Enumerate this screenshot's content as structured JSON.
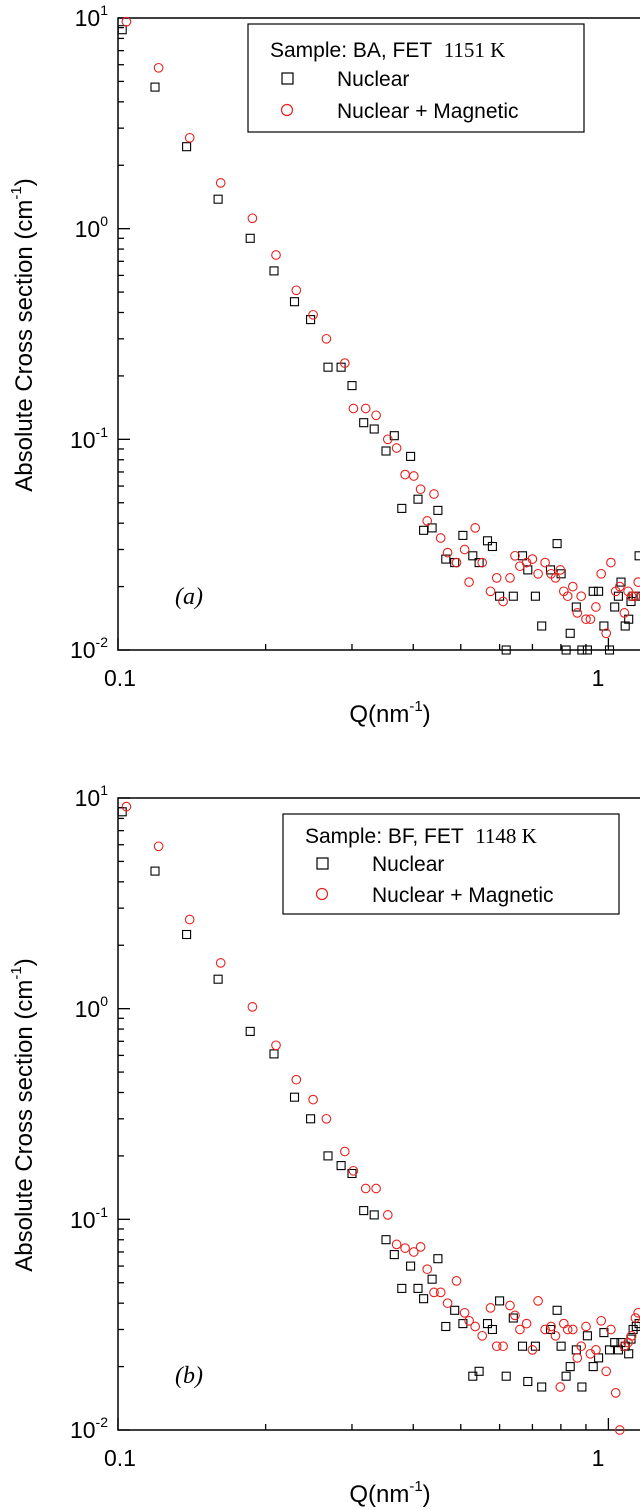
{
  "chart_data": [
    {
      "type": "scatter",
      "panel_label": "(a)",
      "xlabel": "Q(nm",
      "xlabel_sup": "-1",
      "xlabel_tail": ")",
      "ylabel": "Absolute Cross section (cm",
      "ylabel_sup": "-1",
      "ylabel_tail": ")",
      "xscale": "log",
      "yscale": "log",
      "xlim": [
        0.1,
        1.16
      ],
      "ylim": [
        0.01,
        10
      ],
      "x_ticks": [
        "0.1",
        "1"
      ],
      "y_ticks": [
        {
          "value": 10,
          "base": "10",
          "exp": "1"
        },
        {
          "value": 1,
          "base": "10",
          "exp": "0"
        },
        {
          "value": 0.1,
          "base": "10",
          "exp": "-1"
        },
        {
          "value": 0.01,
          "base": "10",
          "exp": "-2"
        }
      ],
      "legend": {
        "position": "top-right",
        "title": "Sample: BA, FET",
        "title_value": "1151 K",
        "entries": [
          "Nuclear",
          "Nuclear + Magnetic"
        ]
      },
      "colors": {
        "nuclear": "#000000",
        "magnetic": "#e8211d"
      },
      "series": [
        {
          "name": "Nuclear",
          "marker": "square",
          "points": [
            [
              0.102,
              8.8
            ],
            [
              0.119,
              4.7
            ],
            [
              0.138,
              2.45
            ],
            [
              0.16,
              1.38
            ],
            [
              0.186,
              0.9
            ],
            [
              0.208,
              0.63
            ],
            [
              0.229,
              0.45
            ],
            [
              0.247,
              0.37
            ],
            [
              0.268,
              0.22
            ],
            [
              0.285,
              0.22
            ],
            [
              0.3,
              0.18
            ],
            [
              0.317,
              0.12
            ],
            [
              0.333,
              0.112
            ],
            [
              0.352,
              0.088
            ],
            [
              0.366,
              0.104
            ],
            [
              0.379,
              0.047
            ],
            [
              0.395,
              0.083
            ],
            [
              0.409,
              0.052
            ],
            [
              0.42,
              0.037
            ],
            [
              0.437,
              0.038
            ],
            [
              0.449,
              0.046
            ],
            [
              0.466,
              0.027
            ],
            [
              0.486,
              0.026
            ],
            [
              0.505,
              0.035
            ],
            [
              0.529,
              0.028
            ],
            [
              0.545,
              0.026
            ],
            [
              0.567,
              0.033
            ],
            [
              0.58,
              0.031
            ],
            [
              0.6,
              0.018
            ],
            [
              0.619,
              0.01
            ],
            [
              0.64,
              0.018
            ],
            [
              0.668,
              0.028
            ],
            [
              0.685,
              0.024
            ],
            [
              0.71,
              0.018
            ],
            [
              0.731,
              0.013
            ],
            [
              0.762,
              0.024
            ],
            [
              0.786,
              0.032
            ],
            [
              0.801,
              0.023
            ],
            [
              0.82,
              0.01
            ],
            [
              0.836,
              0.012
            ],
            [
              0.86,
              0.016
            ],
            [
              0.883,
              0.01
            ],
            [
              0.906,
              0.01
            ],
            [
              0.931,
              0.019
            ],
            [
              0.955,
              0.019
            ],
            [
              0.979,
              0.013
            ],
            [
              1.005,
              0.01
            ],
            [
              1.03,
              0.016
            ],
            [
              1.048,
              0.018
            ],
            [
              1.061,
              0.021
            ],
            [
              1.082,
              0.013
            ],
            [
              1.1,
              0.014
            ],
            [
              1.112,
              0.017
            ],
            [
              1.123,
              0.018
            ],
            [
              1.14,
              0.018
            ],
            [
              1.155,
              0.028
            ]
          ]
        },
        {
          "name": "Nuclear + Magnetic",
          "marker": "circle",
          "points": [
            [
              0.104,
              9.6
            ],
            [
              0.121,
              5.8
            ],
            [
              0.14,
              2.7
            ],
            [
              0.162,
              1.65
            ],
            [
              0.188,
              1.12
            ],
            [
              0.21,
              0.75
            ],
            [
              0.231,
              0.51
            ],
            [
              0.25,
              0.39
            ],
            [
              0.266,
              0.3
            ],
            [
              0.29,
              0.23
            ],
            [
              0.302,
              0.14
            ],
            [
              0.32,
              0.14
            ],
            [
              0.336,
              0.13
            ],
            [
              0.355,
              0.1
            ],
            [
              0.37,
              0.091
            ],
            [
              0.385,
              0.068
            ],
            [
              0.401,
              0.067
            ],
            [
              0.414,
              0.058
            ],
            [
              0.427,
              0.041
            ],
            [
              0.441,
              0.055
            ],
            [
              0.455,
              0.034
            ],
            [
              0.47,
              0.029
            ],
            [
              0.49,
              0.026
            ],
            [
              0.509,
              0.03
            ],
            [
              0.52,
              0.021
            ],
            [
              0.535,
              0.038
            ],
            [
              0.553,
              0.026
            ],
            [
              0.575,
              0.019
            ],
            [
              0.592,
              0.022
            ],
            [
              0.61,
              0.017
            ],
            [
              0.63,
              0.022
            ],
            [
              0.645,
              0.028
            ],
            [
              0.66,
              0.025
            ],
            [
              0.681,
              0.026
            ],
            [
              0.7,
              0.027
            ],
            [
              0.719,
              0.023
            ],
            [
              0.743,
              0.026
            ],
            [
              0.764,
              0.023
            ],
            [
              0.78,
              0.022
            ],
            [
              0.798,
              0.024
            ],
            [
              0.811,
              0.019
            ],
            [
              0.826,
              0.018
            ],
            [
              0.846,
              0.02
            ],
            [
              0.864,
              0.015
            ],
            [
              0.88,
              0.018
            ],
            [
              0.9,
              0.014
            ],
            [
              0.919,
              0.014
            ],
            [
              0.943,
              0.016
            ],
            [
              0.967,
              0.023
            ],
            [
              0.99,
              0.012
            ],
            [
              1.012,
              0.026
            ],
            [
              1.035,
              0.019
            ],
            [
              1.055,
              0.02
            ],
            [
              1.078,
              0.015
            ],
            [
              1.097,
              0.019
            ],
            [
              1.115,
              0.018
            ],
            [
              1.135,
              0.018
            ],
            [
              1.15,
              0.021
            ]
          ]
        }
      ]
    },
    {
      "type": "scatter",
      "panel_label": "(b)",
      "xlabel": "Q(nm",
      "xlabel_sup": "-1",
      "xlabel_tail": ")",
      "ylabel": "Absolute Cross section (cm",
      "ylabel_sup": "-1",
      "ylabel_tail": ")",
      "xscale": "log",
      "yscale": "log",
      "xlim": [
        0.1,
        1.16
      ],
      "ylim": [
        0.01,
        10
      ],
      "x_ticks": [
        "0.1",
        "1"
      ],
      "y_ticks": [
        {
          "value": 10,
          "base": "10",
          "exp": "1"
        },
        {
          "value": 1,
          "base": "10",
          "exp": "0"
        },
        {
          "value": 0.1,
          "base": "10",
          "exp": "-1"
        },
        {
          "value": 0.01,
          "base": "10",
          "exp": "-2"
        }
      ],
      "legend": {
        "position": "top-right",
        "title": "Sample: BF, FET",
        "title_value": "1148 K",
        "entries": [
          "Nuclear",
          "Nuclear + Magnetic"
        ]
      },
      "colors": {
        "nuclear": "#000000",
        "magnetic": "#e8211d"
      },
      "series": [
        {
          "name": "Nuclear",
          "marker": "square",
          "points": [
            [
              0.102,
              8.6
            ],
            [
              0.119,
              4.5
            ],
            [
              0.138,
              2.25
            ],
            [
              0.16,
              1.38
            ],
            [
              0.186,
              0.78
            ],
            [
              0.208,
              0.61
            ],
            [
              0.229,
              0.38
            ],
            [
              0.247,
              0.3
            ],
            [
              0.268,
              0.2
            ],
            [
              0.285,
              0.18
            ],
            [
              0.3,
              0.165
            ],
            [
              0.317,
              0.11
            ],
            [
              0.333,
              0.105
            ],
            [
              0.352,
              0.08
            ],
            [
              0.366,
              0.068
            ],
            [
              0.379,
              0.047
            ],
            [
              0.395,
              0.06
            ],
            [
              0.409,
              0.047
            ],
            [
              0.42,
              0.042
            ],
            [
              0.437,
              0.052
            ],
            [
              0.449,
              0.065
            ],
            [
              0.466,
              0.031
            ],
            [
              0.486,
              0.037
            ],
            [
              0.505,
              0.032
            ],
            [
              0.529,
              0.018
            ],
            [
              0.545,
              0.019
            ],
            [
              0.567,
              0.032
            ],
            [
              0.58,
              0.03
            ],
            [
              0.6,
              0.041
            ],
            [
              0.619,
              0.018
            ],
            [
              0.64,
              0.034
            ],
            [
              0.668,
              0.025
            ],
            [
              0.685,
              0.017
            ],
            [
              0.71,
              0.025
            ],
            [
              0.731,
              0.016
            ],
            [
              0.762,
              0.03
            ],
            [
              0.786,
              0.037
            ],
            [
              0.801,
              0.025
            ],
            [
              0.82,
              0.018
            ],
            [
              0.836,
              0.02
            ],
            [
              0.86,
              0.024
            ],
            [
              0.883,
              0.016
            ],
            [
              0.906,
              0.028
            ],
            [
              0.931,
              0.02
            ],
            [
              0.955,
              0.022
            ],
            [
              0.979,
              0.029
            ],
            [
              1.005,
              0.024
            ],
            [
              1.03,
              0.026
            ],
            [
              1.048,
              0.024
            ],
            [
              1.061,
              0.026
            ],
            [
              1.082,
              0.025
            ],
            [
              1.1,
              0.023
            ],
            [
              1.112,
              0.027
            ],
            [
              1.123,
              0.03
            ],
            [
              1.14,
              0.031
            ],
            [
              1.155,
              0.032
            ]
          ]
        },
        {
          "name": "Nuclear + Magnetic",
          "marker": "circle",
          "points": [
            [
              0.104,
              9.1
            ],
            [
              0.121,
              5.9
            ],
            [
              0.14,
              2.65
            ],
            [
              0.162,
              1.65
            ],
            [
              0.188,
              1.02
            ],
            [
              0.21,
              0.67
            ],
            [
              0.231,
              0.46
            ],
            [
              0.25,
              0.37
            ],
            [
              0.266,
              0.3
            ],
            [
              0.29,
              0.21
            ],
            [
              0.302,
              0.17
            ],
            [
              0.32,
              0.14
            ],
            [
              0.336,
              0.14
            ],
            [
              0.355,
              0.105
            ],
            [
              0.37,
              0.076
            ],
            [
              0.385,
              0.073
            ],
            [
              0.401,
              0.07
            ],
            [
              0.414,
              0.074
            ],
            [
              0.427,
              0.058
            ],
            [
              0.441,
              0.045
            ],
            [
              0.455,
              0.045
            ],
            [
              0.47,
              0.04
            ],
            [
              0.49,
              0.051
            ],
            [
              0.509,
              0.036
            ],
            [
              0.52,
              0.033
            ],
            [
              0.535,
              0.031
            ],
            [
              0.553,
              0.028
            ],
            [
              0.575,
              0.038
            ],
            [
              0.592,
              0.025
            ],
            [
              0.61,
              0.025
            ],
            [
              0.63,
              0.039
            ],
            [
              0.645,
              0.035
            ],
            [
              0.66,
              0.03
            ],
            [
              0.681,
              0.032
            ],
            [
              0.7,
              0.024
            ],
            [
              0.719,
              0.041
            ],
            [
              0.743,
              0.03
            ],
            [
              0.764,
              0.031
            ],
            [
              0.78,
              0.028
            ],
            [
              0.798,
              0.016
            ],
            [
              0.811,
              0.032
            ],
            [
              0.826,
              0.03
            ],
            [
              0.846,
              0.03
            ],
            [
              0.864,
              0.022
            ],
            [
              0.88,
              0.025
            ],
            [
              0.9,
              0.031
            ],
            [
              0.919,
              0.023
            ],
            [
              0.943,
              0.024
            ],
            [
              0.967,
              0.033
            ],
            [
              0.99,
              0.019
            ],
            [
              1.012,
              0.03
            ],
            [
              1.035,
              0.015
            ],
            [
              1.055,
              0.01
            ],
            [
              1.078,
              0.025
            ],
            [
              1.097,
              0.026
            ],
            [
              1.115,
              0.028
            ],
            [
              1.135,
              0.034
            ],
            [
              1.15,
              0.036
            ]
          ]
        }
      ]
    }
  ]
}
